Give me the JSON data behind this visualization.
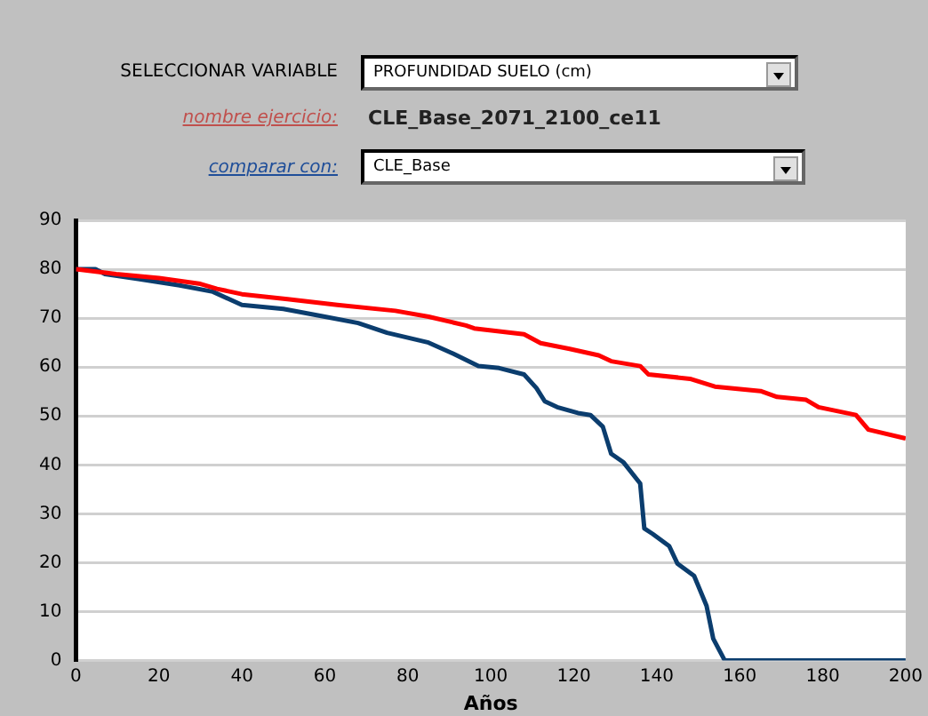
{
  "chart_data": {
    "type": "line",
    "xlabel": "Años",
    "annotations": [
      "SELECCIONAR VARIABLE",
      "PROFUNDIDAD SUELO (cm)",
      "nombre ejercicio:",
      "CLE_Base_2071_2100_ce11",
      "comparar con:",
      "CLE_Base"
    ],
    "xlim": [
      0,
      200
    ],
    "xticks": [
      0,
      20,
      40,
      60,
      80,
      100,
      120,
      140,
      160,
      180,
      200
    ],
    "ylim": [
      0,
      90
    ],
    "yticks": [
      0,
      10,
      20,
      30,
      40,
      50,
      60,
      70,
      80,
      90
    ],
    "grid": "y",
    "marker": "none",
    "line_style": "solid",
    "legend": false,
    "series": [
      {
        "color": "#ff0000",
        "x": [
          0,
          9.7,
          20,
          30,
          34,
          40,
          51,
          63,
          77,
          85,
          94,
          96,
          108,
          112,
          119,
          126,
          129,
          136,
          138,
          148,
          154,
          165,
          169,
          176,
          179,
          188,
          191,
          200
        ],
        "values": [
          80,
          79,
          78.2,
          77,
          76,
          74.9,
          73.9,
          72.7,
          71.5,
          70.3,
          68.5,
          67.9,
          66.7,
          64.9,
          63.7,
          62.4,
          61.2,
          60.2,
          58.5,
          57.6,
          56,
          55.1,
          53.9,
          53.3,
          51.8,
          50.2,
          47.2,
          45.4
        ]
      },
      {
        "color": "#0b3d6e",
        "x": [
          0,
          4.7,
          7,
          15,
          25,
          33,
          40,
          50,
          60,
          68,
          75,
          85,
          91,
          97,
          102,
          108,
          111,
          113,
          116,
          121,
          124,
          127,
          129,
          132,
          136,
          137,
          139,
          143,
          145,
          149,
          152,
          153.6,
          156.4,
          200
        ],
        "values": [
          80,
          80,
          79,
          78,
          76.7,
          75.4,
          72.7,
          71.9,
          70.3,
          69,
          67,
          65,
          62.7,
          60.2,
          59.8,
          58.5,
          55.7,
          53,
          51.8,
          50.6,
          50.2,
          47.8,
          42.3,
          40.5,
          36.2,
          27,
          25.9,
          23.4,
          19.8,
          17.3,
          11.2,
          4.5,
          0,
          0
        ]
      }
    ]
  }
}
